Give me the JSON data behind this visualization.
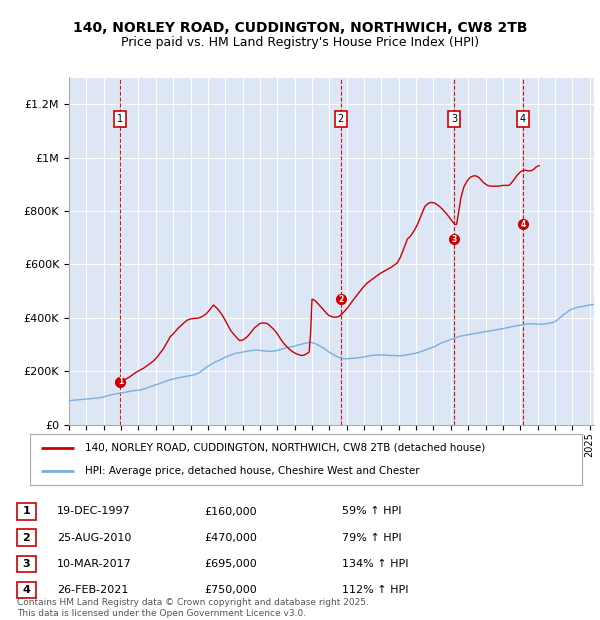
{
  "title_line1": "140, NORLEY ROAD, CUDDINGTON, NORTHWICH, CW8 2TB",
  "title_line2": "Price paid vs. HM Land Registry's House Price Index (HPI)",
  "plot_bg_color": "#dce6f5",
  "red_line_color": "#cc0000",
  "blue_line_color": "#7aafdb",
  "sale_dates": [
    "1997-12-19",
    "2010-08-25",
    "2017-03-10",
    "2021-02-26"
  ],
  "sale_prices": [
    160000,
    470000,
    695000,
    750000
  ],
  "sale_labels": [
    "1",
    "2",
    "3",
    "4"
  ],
  "legend_red_label": "140, NORLEY ROAD, CUDDINGTON, NORTHWICH, CW8 2TB (detached house)",
  "legend_blue_label": "HPI: Average price, detached house, Cheshire West and Chester",
  "footer_text": "Contains HM Land Registry data © Crown copyright and database right 2025.\nThis data is licensed under the Open Government Licence v3.0.",
  "table_rows": [
    {
      "num": "1",
      "date": "19-DEC-1997",
      "price": "£160,000",
      "hpi": "59% ↑ HPI"
    },
    {
      "num": "2",
      "date": "25-AUG-2010",
      "price": "£470,000",
      "hpi": "79% ↑ HPI"
    },
    {
      "num": "3",
      "date": "10-MAR-2017",
      "price": "£695,000",
      "hpi": "134% ↑ HPI"
    },
    {
      "num": "4",
      "date": "26-FEB-2021",
      "price": "£750,000",
      "hpi": "112% ↑ HPI"
    }
  ],
  "ylim": [
    0,
    1300000
  ],
  "yticks": [
    0,
    200000,
    400000,
    600000,
    800000,
    1000000,
    1200000
  ],
  "ytick_labels": [
    "£0",
    "£200K",
    "£400K",
    "£600K",
    "£800K",
    "£1M",
    "£1.2M"
  ],
  "hpi_monthly": {
    "start_year": 1995,
    "start_month": 1,
    "values": [
      90000,
      90500,
      91000,
      91500,
      92000,
      92500,
      93000,
      93500,
      94000,
      94500,
      95000,
      95500,
      96000,
      96500,
      97000,
      97500,
      98000,
      98500,
      99000,
      99500,
      100000,
      101000,
      102000,
      103000,
      104500,
      106000,
      107500,
      109000,
      110500,
      112000,
      113000,
      114000,
      115000,
      116000,
      117000,
      118000,
      119000,
      120000,
      121000,
      122000,
      123000,
      124000,
      125000,
      126000,
      127000,
      127500,
      128000,
      128500,
      129000,
      130000,
      131000,
      132500,
      134000,
      136000,
      138000,
      140000,
      142000,
      144000,
      146000,
      148000,
      149500,
      151000,
      153000,
      155000,
      157000,
      159000,
      161000,
      163000,
      165000,
      167000,
      168000,
      170000,
      171000,
      172000,
      174000,
      175000,
      176000,
      177000,
      178000,
      179000,
      180000,
      181000,
      182000,
      183000,
      184000,
      185000,
      186000,
      188000,
      190000,
      192000,
      195000,
      198000,
      202000,
      207000,
      211000,
      215000,
      219000,
      222000,
      225000,
      228000,
      231000,
      234000,
      237000,
      239000,
      241000,
      244000,
      247000,
      250000,
      253000,
      255000,
      257000,
      259000,
      261000,
      263000,
      265000,
      267000,
      268000,
      269000,
      270000,
      271000,
      272000,
      273000,
      274000,
      275000,
      276000,
      277000,
      278000,
      278500,
      279000,
      279000,
      279000,
      278500,
      278000,
      277500,
      277000,
      276500,
      276000,
      275500,
      275000,
      275000,
      275000,
      275500,
      276000,
      277000,
      278000,
      279500,
      281000,
      282500,
      284000,
      286000,
      288000,
      289000,
      290000,
      291000,
      292000,
      293000,
      294000,
      296000,
      298000,
      299000,
      300500,
      302000,
      303000,
      304500,
      306000,
      307000,
      307500,
      308000,
      307000,
      306000,
      304000,
      302000,
      299000,
      296000,
      293000,
      290000,
      287000,
      283000,
      279000,
      275000,
      271000,
      268000,
      265000,
      262000,
      259000,
      256000,
      253000,
      251000,
      249000,
      248000,
      247500,
      247000,
      247000,
      247000,
      247500,
      248000,
      248500,
      249000,
      249500,
      250000,
      250500,
      251000,
      252000,
      253000,
      254000,
      255000,
      256000,
      257000,
      258000,
      259000,
      259500,
      260000,
      260500,
      261000,
      261000,
      261000,
      261000,
      261000,
      261000,
      260500,
      260000,
      259500,
      259000,
      259000,
      259000,
      259000,
      259000,
      258500,
      258000,
      258000,
      258500,
      259000,
      260000,
      261000,
      262000,
      263000,
      264000,
      265000,
      266000,
      267000,
      268000,
      270000,
      271000,
      273000,
      275000,
      277000,
      279000,
      281000,
      283000,
      285000,
      287000,
      289000,
      291000,
      293000,
      296000,
      299000,
      302000,
      305000,
      307000,
      309000,
      311000,
      313000,
      315000,
      317000,
      319000,
      321000,
      323000,
      325000,
      327000,
      329000,
      331000,
      332000,
      333000,
      334000,
      335000,
      336000,
      337000,
      338000,
      339000,
      340000,
      341000,
      342000,
      343000,
      344000,
      345000,
      346000,
      347000,
      348000,
      349000,
      349500,
      350000,
      351000,
      352000,
      353000,
      354000,
      355000,
      356000,
      357000,
      358000,
      359000,
      360000,
      361000,
      362000,
      363000,
      364000,
      365500,
      367000,
      368000,
      369000,
      370000,
      371000,
      372000,
      373000,
      374000,
      375000,
      376000,
      376500,
      377000,
      377500,
      378000,
      378000,
      377500,
      377000,
      376500,
      376000,
      376000,
      376000,
      376500,
      377000,
      377500,
      378000,
      379000,
      380000,
      381000,
      382000,
      383000,
      386000,
      390000,
      394000,
      398000,
      402000,
      407000,
      412000,
      416000,
      420000,
      424000,
      428000,
      431000,
      433000,
      435000,
      437000,
      439000,
      440000,
      441000,
      442000,
      443000,
      444000,
      445000,
      446000,
      447000,
      448000,
      449000,
      449500,
      450000,
      450500,
      451000,
      452000,
      452500,
      453000,
      453500,
      454000,
      455000,
      455500,
      456000,
      456500,
      457000,
      457500,
      458000,
      457000,
      456000,
      455000,
      454000,
      452000,
      450000,
      448000,
      446000,
      444000,
      443000,
      442000,
      441000,
      440000,
      439500,
      439000,
      438500,
      438000,
      437500,
      437000,
      437000,
      437000,
      437000,
      437000,
      436000,
      436000,
      436500,
      437000,
      437500,
      438000,
      439000,
      440000,
      440500,
      441000,
      441500,
      442000,
      442500,
      443000,
      443500,
      444000,
      444500,
      445000,
      446000
    ]
  },
  "red_hpi_monthly": {
    "start_year": 1997,
    "start_month": 12,
    "values": [
      160000,
      162000,
      164000,
      167000,
      170000,
      173000,
      176000,
      179000,
      183000,
      187000,
      191000,
      195000,
      198000,
      201000,
      204000,
      207000,
      210000,
      213000,
      217000,
      221000,
      225000,
      229000,
      233000,
      237000,
      242000,
      248000,
      254000,
      261000,
      268000,
      275000,
      282000,
      291000,
      300000,
      310000,
      320000,
      330000,
      335000,
      340000,
      346000,
      352000,
      358000,
      364000,
      369000,
      374000,
      379000,
      384000,
      388000,
      392000,
      394000,
      396000,
      397000,
      397500,
      398000,
      398500,
      399000,
      400000,
      402000,
      405000,
      408000,
      412000,
      416000,
      422000,
      428000,
      435000,
      442000,
      448000,
      443000,
      438000,
      432000,
      425000,
      418000,
      410000,
      401000,
      391000,
      381000,
      371000,
      361000,
      351000,
      345000,
      338000,
      332000,
      326000,
      320000,
      315000,
      316000,
      317000,
      320000,
      324000,
      328000,
      334000,
      340000,
      347000,
      354000,
      361000,
      366000,
      370000,
      375000,
      379000,
      380000,
      381000,
      381000,
      380000,
      379000,
      375000,
      370000,
      365000,
      360000,
      354000,
      348000,
      340000,
      332000,
      324000,
      316000,
      308000,
      302000,
      296000,
      290000,
      285000,
      280000,
      276000,
      272000,
      269000,
      266000,
      264000,
      262000,
      260000,
      259000,
      260000,
      262000,
      265000,
      268000,
      272000,
      340000,
      470000,
      468000,
      465000,
      460000,
      454000,
      448000,
      442000,
      436000,
      430000,
      424000,
      418000,
      412000,
      408000,
      406000,
      404000,
      403000,
      402000,
      403000,
      404000,
      407000,
      411000,
      416000,
      422000,
      428000,
      434000,
      441000,
      448000,
      456000,
      463000,
      470000,
      477000,
      484000,
      491000,
      498000,
      505000,
      512000,
      518000,
      524000,
      530000,
      534000,
      538000,
      542000,
      546000,
      550000,
      554000,
      558000,
      562000,
      566000,
      569000,
      572000,
      575000,
      578000,
      581000,
      584000,
      587000,
      590000,
      594000,
      598000,
      602000,
      606000,
      616000,
      626000,
      638000,
      652000,
      666000,
      680000,
      695000,
      700000,
      706000,
      713000,
      721000,
      730000,
      740000,
      751000,
      763000,
      776000,
      789000,
      803000,
      816000,
      822000,
      827000,
      830000,
      832000,
      832000,
      831000,
      829000,
      826000,
      822000,
      818000,
      813000,
      808000,
      802000,
      796000,
      790000,
      783000,
      776000,
      769000,
      761000,
      755000,
      750000,
      750000,
      782000,
      816000,
      850000,
      870000,
      890000,
      900000,
      910000,
      918000,
      924000,
      928000,
      930000,
      932000,
      932000,
      930000,
      927000,
      922000,
      916000,
      910000,
      905000,
      901000,
      897000,
      895000,
      894000,
      893000,
      893000,
      893000,
      893000,
      893000,
      894000,
      894000,
      895000,
      896000,
      896000,
      896000,
      896000,
      896000,
      900000,
      906000,
      913000,
      920000,
      928000,
      935000,
      941000,
      946000,
      950000,
      952000,
      953000,
      952000,
      951000,
      950000,
      951000,
      952000,
      955000,
      960000,
      965000,
      968000,
      970000
    ]
  }
}
